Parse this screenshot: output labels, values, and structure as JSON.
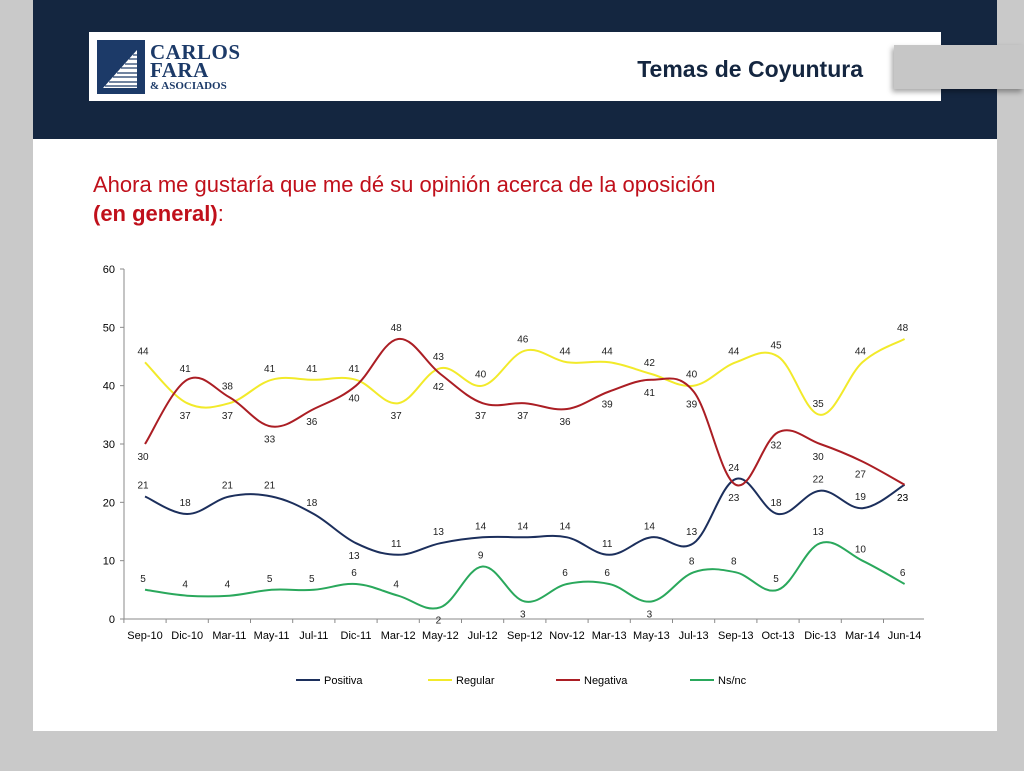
{
  "header": {
    "logo_line1": "CARLOS",
    "logo_line2": "FARA",
    "logo_line3": "& ASOCIADOS",
    "title": "Temas de Coyuntura"
  },
  "question": {
    "text": "Ahora me gustaría que me dé su opinión acerca de la oposición",
    "bold": "(en general)",
    "suffix": ":"
  },
  "colors": {
    "header_band": "#142640",
    "question_text": "#c0101b",
    "Positiva": "#1c2f5c",
    "Regular": "#f2ea2a",
    "Negativa": "#ab1e24",
    "Ns/nc": "#2aa85c"
  },
  "chart_data": {
    "type": "line",
    "categories": [
      "Sep-10",
      "Dic-10",
      "Mar-11",
      "May-11",
      "Jul-11",
      "Dic-11",
      "Mar-12",
      "May-12",
      "Jul-12",
      "Sep-12",
      "Nov-12",
      "Mar-13",
      "May-13",
      "Jul-13",
      "Sep-13",
      "Oct-13",
      "Dic-13",
      "Mar-14",
      "Jun-14"
    ],
    "ylim": [
      0,
      60
    ],
    "yticks": [
      0,
      10,
      20,
      30,
      40,
      50,
      60
    ],
    "grid": false,
    "legend_position": "bottom",
    "series": [
      {
        "name": "Positiva",
        "values": [
          21,
          18,
          21,
          21,
          18,
          13,
          11,
          13,
          14,
          14,
          14,
          11,
          14,
          13,
          24,
          18,
          22,
          19,
          23
        ]
      },
      {
        "name": "Regular",
        "values": [
          44,
          37,
          37,
          41,
          41,
          41,
          37,
          43,
          40,
          46,
          44,
          44,
          42,
          40,
          44,
          45,
          35,
          44,
          48
        ]
      },
      {
        "name": "Negativa",
        "values": [
          30,
          41,
          38,
          33,
          36,
          40,
          48,
          42,
          37,
          37,
          36,
          39,
          41,
          39,
          23,
          32,
          30,
          27,
          23
        ]
      },
      {
        "name": "Ns/nc",
        "values": [
          5,
          4,
          4,
          5,
          5,
          6,
          4,
          2,
          9,
          3,
          6,
          6,
          3,
          8,
          8,
          5,
          13,
          10,
          6
        ]
      }
    ]
  }
}
